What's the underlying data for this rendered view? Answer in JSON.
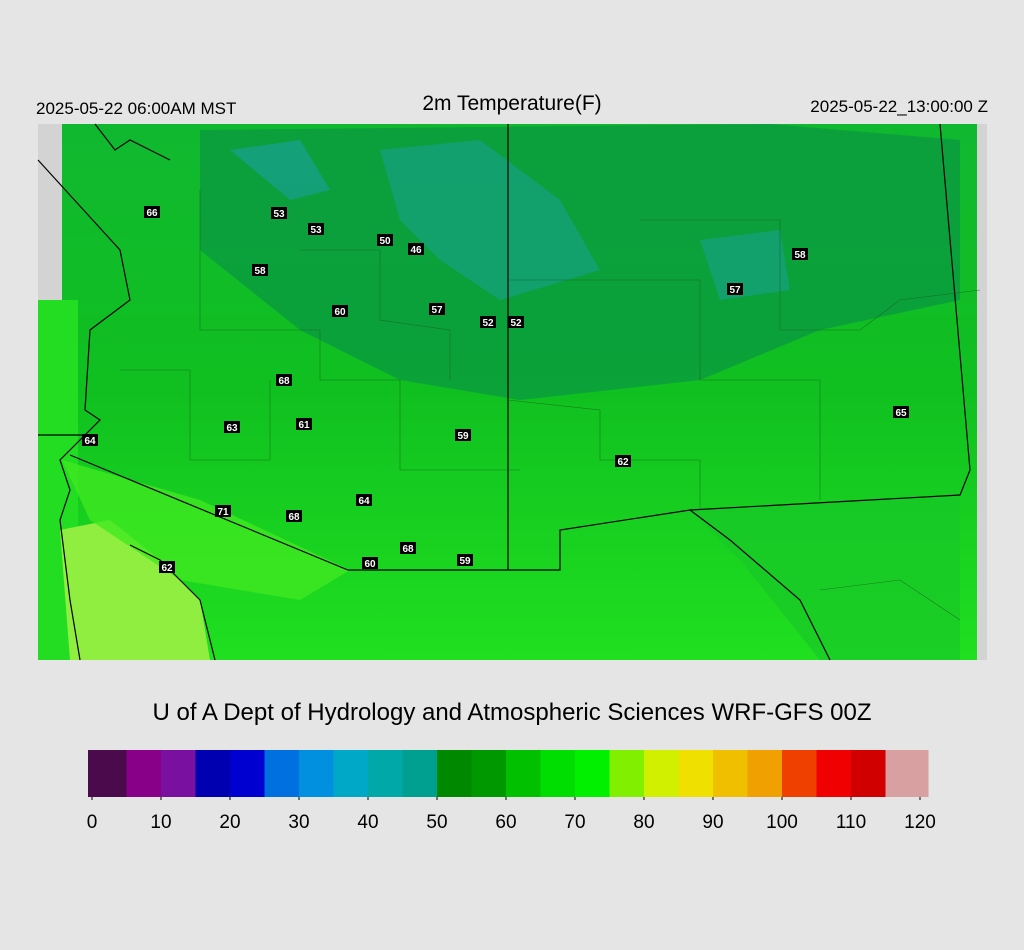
{
  "header": {
    "left": "2025-05-22 06:00AM MST",
    "title": "2m Temperature(F)",
    "right": "2025-05-22_13:00:00 Z"
  },
  "credit": "U of A Dept of Hydrology and Atmospheric Sciences WRF-GFS 00Z",
  "stations": {
    "values": [
      66,
      53,
      53,
      50,
      46,
      58,
      60,
      57,
      52,
      52,
      58,
      57,
      68,
      63,
      61,
      64,
      59,
      62,
      65,
      71,
      68,
      64,
      68,
      59,
      60,
      62
    ]
  },
  "colorbar": {
    "range": [
      0,
      120
    ],
    "ticks": [
      0,
      10,
      20,
      30,
      40,
      50,
      60,
      70,
      80,
      90,
      100,
      110,
      120
    ],
    "colors": [
      "#4b0a4b",
      "#880088",
      "#7a10a0",
      "#0000b0",
      "#0000d0",
      "#0070e0",
      "#0090e0",
      "#00a8c8",
      "#00a8a8",
      "#00a090",
      "#008800",
      "#009800",
      "#00c000",
      "#00dd00",
      "#00f000",
      "#80f000",
      "#d0f000",
      "#f0e000",
      "#f0c000",
      "#f0a000",
      "#f04000",
      "#f00000",
      "#d00000",
      "#d8a0a0"
    ]
  }
}
